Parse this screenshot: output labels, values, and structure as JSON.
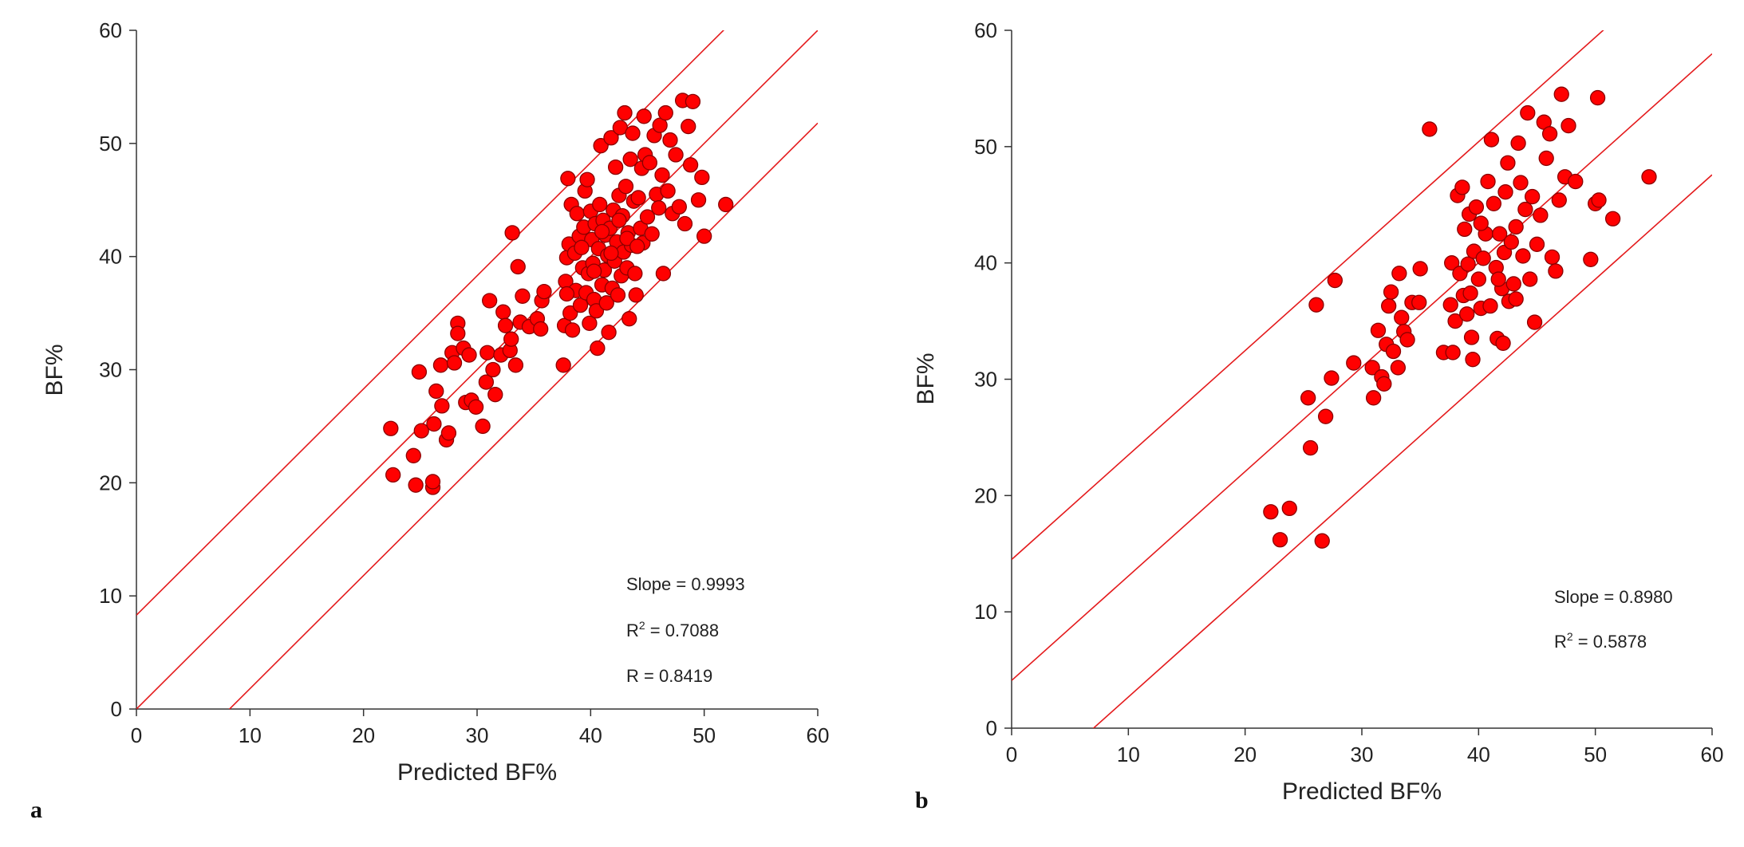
{
  "figure": {
    "colors": {
      "marker_fill": "#ff0000",
      "marker_stroke": "#8b0000",
      "line": "#e41a1c",
      "axis": "#333333"
    }
  },
  "chart_data": [
    {
      "panel_label": "a",
      "type": "scatter",
      "xlabel": "Predicted BF%",
      "ylabel": "BF%",
      "xlim": [
        0,
        60
      ],
      "ylim": [
        0,
        60
      ],
      "xticks": [
        "0",
        "10",
        "20",
        "30",
        "40",
        "50",
        "60"
      ],
      "yticks": [
        "0",
        "10",
        "20",
        "30",
        "40",
        "50",
        "60"
      ],
      "grid": false,
      "stats": {
        "slope": "Slope = 0.9993",
        "r2_prefix": "R",
        "r2_sup": "2",
        "r2_value": " = 0.7088",
        "r": "R = 0.8419"
      },
      "lines": [
        {
          "name": "identity",
          "intercept": 0,
          "slope": 1
        },
        {
          "name": "upper limit",
          "intercept": 8.3,
          "slope": 1
        },
        {
          "name": "lower limit",
          "intercept": -8.2,
          "slope": 1
        }
      ],
      "points": [
        [
          22.4,
          24.8
        ],
        [
          22.6,
          20.7
        ],
        [
          24.4,
          22.4
        ],
        [
          24.6,
          19.8
        ],
        [
          25.1,
          24.6
        ],
        [
          24.9,
          29.8
        ],
        [
          26.1,
          19.6
        ],
        [
          26.2,
          25.2
        ],
        [
          26.4,
          28.1
        ],
        [
          26.1,
          20.1
        ],
        [
          26.8,
          30.4
        ],
        [
          27.3,
          23.8
        ],
        [
          27.5,
          24.4
        ],
        [
          26.9,
          26.8
        ],
        [
          27.8,
          31.5
        ],
        [
          28.0,
          30.6
        ],
        [
          28.3,
          34.1
        ],
        [
          28.3,
          33.2
        ],
        [
          28.8,
          31.9
        ],
        [
          29.0,
          27.1
        ],
        [
          29.3,
          31.3
        ],
        [
          29.5,
          27.3
        ],
        [
          29.9,
          26.7
        ],
        [
          30.5,
          25.0
        ],
        [
          30.8,
          28.9
        ],
        [
          30.9,
          31.5
        ],
        [
          31.1,
          36.1
        ],
        [
          31.4,
          30.0
        ],
        [
          31.6,
          27.8
        ],
        [
          32.1,
          31.3
        ],
        [
          32.3,
          35.1
        ],
        [
          32.5,
          33.9
        ],
        [
          32.9,
          31.7
        ],
        [
          33.0,
          32.7
        ],
        [
          33.4,
          30.4
        ],
        [
          33.6,
          39.1
        ],
        [
          33.1,
          42.1
        ],
        [
          33.8,
          34.2
        ],
        [
          34.0,
          36.5
        ],
        [
          34.6,
          33.8
        ],
        [
          35.3,
          34.5
        ],
        [
          35.6,
          33.6
        ],
        [
          35.7,
          36.1
        ],
        [
          35.9,
          36.9
        ],
        [
          37.6,
          30.4
        ],
        [
          37.7,
          33.9
        ],
        [
          37.8,
          37.8
        ],
        [
          37.9,
          39.9
        ],
        [
          38.0,
          46.9
        ],
        [
          38.1,
          41.1
        ],
        [
          38.2,
          35.0
        ],
        [
          38.3,
          44.6
        ],
        [
          38.4,
          33.5
        ],
        [
          38.6,
          40.3
        ],
        [
          38.7,
          37.0
        ],
        [
          38.8,
          43.8
        ],
        [
          39.0,
          41.8
        ],
        [
          39.1,
          35.7
        ],
        [
          39.3,
          39.0
        ],
        [
          39.4,
          42.6
        ],
        [
          39.5,
          45.8
        ],
        [
          39.6,
          36.8
        ],
        [
          39.7,
          46.8
        ],
        [
          39.8,
          38.5
        ],
        [
          39.9,
          34.1
        ],
        [
          40.0,
          44.0
        ],
        [
          40.1,
          41.5
        ],
        [
          40.2,
          39.4
        ],
        [
          40.3,
          36.2
        ],
        [
          40.4,
          42.9
        ],
        [
          40.5,
          35.2
        ],
        [
          40.6,
          31.9
        ],
        [
          40.7,
          40.7
        ],
        [
          40.8,
          44.6
        ],
        [
          40.9,
          49.8
        ],
        [
          41.0,
          37.5
        ],
        [
          41.1,
          43.2
        ],
        [
          41.2,
          38.8
        ],
        [
          41.3,
          41.9
        ],
        [
          41.4,
          35.9
        ],
        [
          41.5,
          40.1
        ],
        [
          41.6,
          33.3
        ],
        [
          41.7,
          42.5
        ],
        [
          41.8,
          50.5
        ],
        [
          41.9,
          37.2
        ],
        [
          42.0,
          44.1
        ],
        [
          42.1,
          39.6
        ],
        [
          42.2,
          47.9
        ],
        [
          42.3,
          41.3
        ],
        [
          42.4,
          36.6
        ],
        [
          42.5,
          45.4
        ],
        [
          42.6,
          51.4
        ],
        [
          42.7,
          38.3
        ],
        [
          42.8,
          43.6
        ],
        [
          42.9,
          40.4
        ],
        [
          43.0,
          52.7
        ],
        [
          43.1,
          46.2
        ],
        [
          43.2,
          39.0
        ],
        [
          43.3,
          42.1
        ],
        [
          43.4,
          34.5
        ],
        [
          43.5,
          48.6
        ],
        [
          43.6,
          41.0
        ],
        [
          43.7,
          50.9
        ],
        [
          43.8,
          44.9
        ],
        [
          43.9,
          38.5
        ],
        [
          44.0,
          36.6
        ],
        [
          44.2,
          45.2
        ],
        [
          44.4,
          42.5
        ],
        [
          44.5,
          47.8
        ],
        [
          44.6,
          41.2
        ],
        [
          44.7,
          52.4
        ],
        [
          44.8,
          49.0
        ],
        [
          45.0,
          43.5
        ],
        [
          45.2,
          48.3
        ],
        [
          45.4,
          42.0
        ],
        [
          45.6,
          50.7
        ],
        [
          45.8,
          45.5
        ],
        [
          46.0,
          44.3
        ],
        [
          46.1,
          51.6
        ],
        [
          46.3,
          47.2
        ],
        [
          46.4,
          38.5
        ],
        [
          46.6,
          52.7
        ],
        [
          46.8,
          45.8
        ],
        [
          47.0,
          50.3
        ],
        [
          47.2,
          43.8
        ],
        [
          47.5,
          49.0
        ],
        [
          47.8,
          44.4
        ],
        [
          48.1,
          53.8
        ],
        [
          48.3,
          42.9
        ],
        [
          48.6,
          51.5
        ],
        [
          48.8,
          48.1
        ],
        [
          49.0,
          53.7
        ],
        [
          49.5,
          45.0
        ],
        [
          49.8,
          47.0
        ],
        [
          50.0,
          41.8
        ],
        [
          51.9,
          44.6
        ],
        [
          37.9,
          36.7
        ],
        [
          39.2,
          40.8
        ],
        [
          40.3,
          38.7
        ],
        [
          41.0,
          42.2
        ],
        [
          41.8,
          40.3
        ],
        [
          42.5,
          43.2
        ],
        [
          43.2,
          41.6
        ],
        [
          44.1,
          40.9
        ]
      ]
    },
    {
      "panel_label": "b",
      "type": "scatter",
      "xlabel": "Predicted BF%",
      "ylabel": "BF%",
      "xlim": [
        0,
        60
      ],
      "ylim": [
        0,
        60
      ],
      "xticks": [
        "0",
        "10",
        "20",
        "30",
        "40",
        "50",
        "60"
      ],
      "yticks": [
        "0",
        "10",
        "20",
        "30",
        "40",
        "50",
        "60"
      ],
      "grid": false,
      "stats": {
        "slope": "Slope = 0.8980",
        "r2_prefix": "R",
        "r2_sup": "2",
        "r2_value": " = 0.5878"
      },
      "lines": [
        {
          "name": "regression",
          "intercept": 4.1,
          "slope": 0.898
        },
        {
          "name": "upper limit",
          "intercept": 14.5,
          "slope": 0.898
        },
        {
          "name": "lower limit",
          "intercept": -6.3,
          "slope": 0.898
        }
      ],
      "points": [
        [
          22.2,
          18.6
        ],
        [
          23.0,
          16.2
        ],
        [
          23.8,
          18.9
        ],
        [
          25.4,
          28.4
        ],
        [
          25.6,
          24.1
        ],
        [
          26.1,
          36.4
        ],
        [
          26.6,
          16.1
        ],
        [
          26.9,
          26.8
        ],
        [
          27.4,
          30.1
        ],
        [
          27.7,
          38.5
        ],
        [
          29.3,
          31.4
        ],
        [
          30.9,
          31.0
        ],
        [
          31.0,
          28.4
        ],
        [
          31.4,
          34.2
        ],
        [
          31.7,
          30.2
        ],
        [
          31.9,
          29.6
        ],
        [
          32.1,
          33.0
        ],
        [
          32.3,
          36.3
        ],
        [
          32.5,
          37.5
        ],
        [
          32.7,
          32.4
        ],
        [
          33.1,
          31.0
        ],
        [
          33.2,
          39.1
        ],
        [
          33.4,
          35.3
        ],
        [
          33.6,
          34.1
        ],
        [
          33.9,
          33.4
        ],
        [
          34.3,
          36.6
        ],
        [
          34.9,
          36.6
        ],
        [
          35.0,
          39.5
        ],
        [
          35.8,
          51.5
        ],
        [
          37.0,
          32.3
        ],
        [
          37.6,
          36.4
        ],
        [
          37.7,
          40.0
        ],
        [
          37.8,
          32.3
        ],
        [
          38.0,
          35.0
        ],
        [
          38.2,
          45.8
        ],
        [
          38.4,
          39.1
        ],
        [
          38.6,
          46.5
        ],
        [
          38.7,
          37.2
        ],
        [
          38.8,
          42.9
        ],
        [
          39.0,
          35.6
        ],
        [
          39.1,
          39.9
        ],
        [
          39.2,
          44.2
        ],
        [
          39.4,
          33.6
        ],
        [
          39.5,
          31.7
        ],
        [
          39.6,
          41.0
        ],
        [
          39.8,
          44.8
        ],
        [
          40.0,
          38.6
        ],
        [
          40.2,
          36.1
        ],
        [
          40.4,
          40.4
        ],
        [
          40.6,
          42.5
        ],
        [
          40.8,
          47.0
        ],
        [
          41.0,
          36.3
        ],
        [
          41.1,
          50.6
        ],
        [
          41.3,
          45.1
        ],
        [
          41.5,
          39.6
        ],
        [
          41.6,
          33.5
        ],
        [
          41.8,
          42.5
        ],
        [
          42.0,
          37.8
        ],
        [
          42.2,
          40.9
        ],
        [
          42.3,
          46.1
        ],
        [
          42.5,
          48.6
        ],
        [
          42.6,
          36.7
        ],
        [
          42.8,
          41.8
        ],
        [
          43.0,
          38.2
        ],
        [
          43.2,
          43.1
        ],
        [
          43.4,
          50.3
        ],
        [
          43.6,
          46.9
        ],
        [
          43.8,
          40.6
        ],
        [
          44.0,
          44.6
        ],
        [
          44.2,
          52.9
        ],
        [
          44.4,
          38.6
        ],
        [
          44.6,
          45.7
        ],
        [
          44.8,
          34.9
        ],
        [
          45.0,
          41.6
        ],
        [
          45.3,
          44.1
        ],
        [
          45.6,
          52.1
        ],
        [
          45.8,
          49.0
        ],
        [
          46.1,
          51.1
        ],
        [
          46.3,
          40.5
        ],
        [
          46.6,
          39.3
        ],
        [
          46.9,
          45.4
        ],
        [
          47.1,
          54.5
        ],
        [
          47.4,
          47.4
        ],
        [
          47.7,
          51.8
        ],
        [
          48.3,
          47.0
        ],
        [
          49.6,
          40.3
        ],
        [
          50.0,
          45.1
        ],
        [
          50.3,
          45.4
        ],
        [
          50.2,
          54.2
        ],
        [
          51.5,
          43.8
        ],
        [
          54.6,
          47.4
        ],
        [
          42.1,
          33.1
        ],
        [
          40.2,
          43.4
        ],
        [
          41.7,
          38.6
        ],
        [
          43.2,
          36.9
        ],
        [
          39.3,
          37.4
        ]
      ]
    }
  ]
}
